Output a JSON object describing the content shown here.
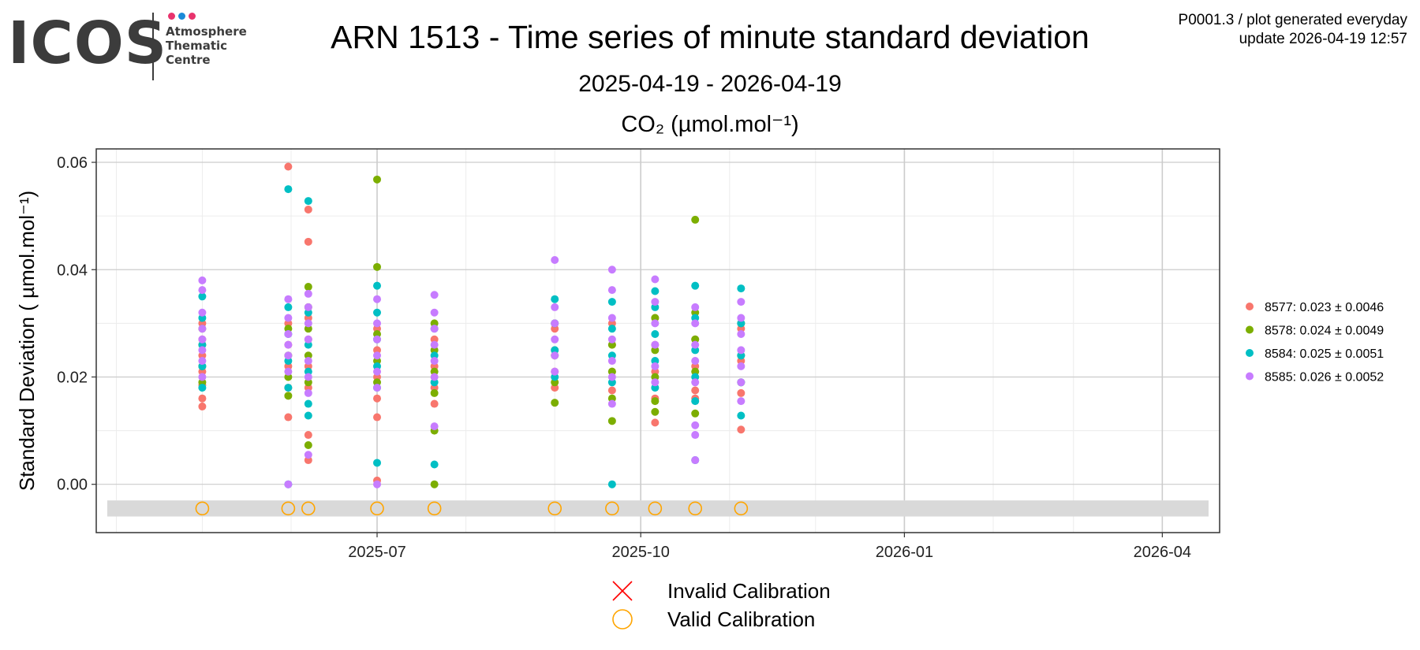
{
  "header": {
    "logo_text": "ICOS",
    "logo_lines": [
      "Atmosphere",
      "Thematic",
      "Centre"
    ],
    "logo_dot_colors": [
      "#e8336d",
      "#1a8ad8",
      "#e8336d"
    ],
    "plot_id": "P0001.3 / plot generated everyday",
    "update_line": "update  2026-04-19 12:57"
  },
  "chart_data": {
    "type": "scatter",
    "title": "ARN 1513 - Time series of minute standard deviation",
    "subtitle": "2025-04-19 - 2026-04-19",
    "panel_title": "CO₂ (µmol.mol⁻¹)",
    "ylabel": "Standard Deviation ( µmol.mol⁻¹)",
    "xlabel": "",
    "x_type": "date",
    "xlim": [
      "2025-04-19",
      "2026-04-19"
    ],
    "ylim": [
      -0.009,
      0.0625
    ],
    "x_ticks": [
      "2025-07",
      "2025-10",
      "2026-01",
      "2026-04"
    ],
    "y_ticks": [
      0.0,
      0.02,
      0.04,
      0.06
    ],
    "y_tick_labels": [
      "0.00",
      "0.02",
      "0.04",
      "0.06"
    ],
    "grid": true,
    "legend_position": "right",
    "calibration_band": [
      -0.006,
      -0.003
    ],
    "series": [
      {
        "name": "8577",
        "stat": "8577: 0.023 ± 0.0046",
        "color": "#F8766D",
        "points": [
          [
            "2025-05-01",
            0.0145
          ],
          [
            "2025-05-01",
            0.016
          ],
          [
            "2025-05-01",
            0.0185
          ],
          [
            "2025-05-01",
            0.021
          ],
          [
            "2025-05-01",
            0.024
          ],
          [
            "2025-05-01",
            0.027
          ],
          [
            "2025-05-01",
            0.03
          ],
          [
            "2025-05-31",
            0.0592
          ],
          [
            "2025-05-31",
            0.0125
          ],
          [
            "2025-05-31",
            0.018
          ],
          [
            "2025-05-31",
            0.022
          ],
          [
            "2025-05-31",
            0.026
          ],
          [
            "2025-05-31",
            0.03
          ],
          [
            "2025-06-07",
            0.0512
          ],
          [
            "2025-06-07",
            0.0452
          ],
          [
            "2025-06-07",
            0.0092
          ],
          [
            "2025-06-07",
            0.0045
          ],
          [
            "2025-06-07",
            0.018
          ],
          [
            "2025-06-07",
            0.022
          ],
          [
            "2025-06-07",
            0.027
          ],
          [
            "2025-06-07",
            0.031
          ],
          [
            "2025-07-01",
            0.0125
          ],
          [
            "2025-07-01",
            0.016
          ],
          [
            "2025-07-01",
            0.0007
          ],
          [
            "2025-07-01",
            0.02
          ],
          [
            "2025-07-01",
            0.025
          ],
          [
            "2025-07-01",
            0.029
          ],
          [
            "2025-07-21",
            0.015
          ],
          [
            "2025-07-21",
            0.018
          ],
          [
            "2025-07-21",
            0.022
          ],
          [
            "2025-07-21",
            0.027
          ],
          [
            "2025-09-01",
            0.018
          ],
          [
            "2025-09-01",
            0.021
          ],
          [
            "2025-09-01",
            0.025
          ],
          [
            "2025-09-01",
            0.029
          ],
          [
            "2025-09-21",
            0.0175
          ],
          [
            "2025-09-21",
            0.021
          ],
          [
            "2025-09-21",
            0.026
          ],
          [
            "2025-09-21",
            0.03
          ],
          [
            "2025-10-06",
            0.0115
          ],
          [
            "2025-10-06",
            0.016
          ],
          [
            "2025-10-06",
            0.021
          ],
          [
            "2025-10-06",
            0.026
          ],
          [
            "2025-10-06",
            0.031
          ],
          [
            "2025-10-20",
            0.016
          ],
          [
            "2025-10-20",
            0.0175
          ],
          [
            "2025-10-20",
            0.022
          ],
          [
            "2025-10-20",
            0.027
          ],
          [
            "2025-11-05",
            0.0102
          ],
          [
            "2025-11-05",
            0.017
          ],
          [
            "2025-11-05",
            0.023
          ],
          [
            "2025-11-05",
            0.029
          ]
        ]
      },
      {
        "name": "8578",
        "stat": "8578: 0.024 ± 0.0049",
        "color": "#7CAE00",
        "points": [
          [
            "2025-05-01",
            0.019
          ],
          [
            "2025-05-01",
            0.022
          ],
          [
            "2025-05-01",
            0.026
          ],
          [
            "2025-05-01",
            0.029
          ],
          [
            "2025-05-31",
            0.0165
          ],
          [
            "2025-05-31",
            0.02
          ],
          [
            "2025-05-31",
            0.024
          ],
          [
            "2025-05-31",
            0.029
          ],
          [
            "2025-06-07",
            0.0368
          ],
          [
            "2025-06-07",
            0.0073
          ],
          [
            "2025-06-07",
            0.019
          ],
          [
            "2025-06-07",
            0.024
          ],
          [
            "2025-06-07",
            0.029
          ],
          [
            "2025-06-07",
            0.033
          ],
          [
            "2025-07-01",
            0.0568
          ],
          [
            "2025-07-01",
            0.0405
          ],
          [
            "2025-07-01",
            0.019
          ],
          [
            "2025-07-01",
            0.023
          ],
          [
            "2025-07-01",
            0.028
          ],
          [
            "2025-07-21",
            0.0
          ],
          [
            "2025-07-21",
            0.01
          ],
          [
            "2025-07-21",
            0.017
          ],
          [
            "2025-07-21",
            0.021
          ],
          [
            "2025-07-21",
            0.025
          ],
          [
            "2025-07-21",
            0.03
          ],
          [
            "2025-09-01",
            0.0152
          ],
          [
            "2025-09-01",
            0.019
          ],
          [
            "2025-09-01",
            0.024
          ],
          [
            "2025-09-01",
            0.03
          ],
          [
            "2025-09-21",
            0.0118
          ],
          [
            "2025-09-21",
            0.016
          ],
          [
            "2025-09-21",
            0.021
          ],
          [
            "2025-09-21",
            0.026
          ],
          [
            "2025-10-06",
            0.0135
          ],
          [
            "2025-10-06",
            0.0155
          ],
          [
            "2025-10-06",
            0.02
          ],
          [
            "2025-10-06",
            0.025
          ],
          [
            "2025-10-06",
            0.031
          ],
          [
            "2025-10-20",
            0.0493
          ],
          [
            "2025-10-20",
            0.0132
          ],
          [
            "2025-10-20",
            0.021
          ],
          [
            "2025-10-20",
            0.027
          ],
          [
            "2025-10-20",
            0.032
          ],
          [
            "2025-11-05",
            0.019
          ],
          [
            "2025-11-05",
            0.024
          ],
          [
            "2025-11-05",
            0.03
          ]
        ]
      },
      {
        "name": "8584",
        "stat": "8584: 0.025 ± 0.0051",
        "color": "#00BFC4",
        "points": [
          [
            "2025-05-01",
            0.018
          ],
          [
            "2025-05-01",
            0.022
          ],
          [
            "2025-05-01",
            0.026
          ],
          [
            "2025-05-01",
            0.031
          ],
          [
            "2025-05-01",
            0.035
          ],
          [
            "2025-05-31",
            0.055
          ],
          [
            "2025-05-31",
            0.0
          ],
          [
            "2025-05-31",
            0.018
          ],
          [
            "2025-05-31",
            0.023
          ],
          [
            "2025-05-31",
            0.028
          ],
          [
            "2025-05-31",
            0.033
          ],
          [
            "2025-06-07",
            0.0528
          ],
          [
            "2025-06-07",
            0.0128
          ],
          [
            "2025-06-07",
            0.015
          ],
          [
            "2025-06-07",
            0.021
          ],
          [
            "2025-06-07",
            0.026
          ],
          [
            "2025-06-07",
            0.032
          ],
          [
            "2025-07-01",
            0.004
          ],
          [
            "2025-07-01",
            0.037
          ],
          [
            "2025-07-01",
            0.018
          ],
          [
            "2025-07-01",
            0.022
          ],
          [
            "2025-07-01",
            0.027
          ],
          [
            "2025-07-01",
            0.032
          ],
          [
            "2025-07-21",
            0.0037
          ],
          [
            "2025-07-21",
            0.019
          ],
          [
            "2025-07-21",
            0.024
          ],
          [
            "2025-07-21",
            0.029
          ],
          [
            "2025-09-01",
            0.0345
          ],
          [
            "2025-09-01",
            0.02
          ],
          [
            "2025-09-01",
            0.025
          ],
          [
            "2025-09-01",
            0.03
          ],
          [
            "2025-09-21",
            0.0
          ],
          [
            "2025-09-21",
            0.019
          ],
          [
            "2025-09-21",
            0.024
          ],
          [
            "2025-09-21",
            0.029
          ],
          [
            "2025-09-21",
            0.034
          ],
          [
            "2025-10-06",
            0.036
          ],
          [
            "2025-10-06",
            0.018
          ],
          [
            "2025-10-06",
            0.023
          ],
          [
            "2025-10-06",
            0.028
          ],
          [
            "2025-10-06",
            0.033
          ],
          [
            "2025-10-20",
            0.0045
          ],
          [
            "2025-10-20",
            0.037
          ],
          [
            "2025-10-20",
            0.0155
          ],
          [
            "2025-10-20",
            0.02
          ],
          [
            "2025-10-20",
            0.025
          ],
          [
            "2025-10-20",
            0.031
          ],
          [
            "2025-11-05",
            0.0128
          ],
          [
            "2025-11-05",
            0.0365
          ],
          [
            "2025-11-05",
            0.019
          ],
          [
            "2025-11-05",
            0.024
          ],
          [
            "2025-11-05",
            0.03
          ]
        ]
      },
      {
        "name": "8585",
        "stat": "8585: 0.026 ± 0.0052",
        "color": "#C77CFF",
        "points": [
          [
            "2025-05-01",
            0.038
          ],
          [
            "2025-05-01",
            0.0362
          ],
          [
            "2025-05-01",
            0.02
          ],
          [
            "2025-05-01",
            0.023
          ],
          [
            "2025-05-01",
            0.025
          ],
          [
            "2025-05-01",
            0.027
          ],
          [
            "2025-05-01",
            0.029
          ],
          [
            "2025-05-01",
            0.032
          ],
          [
            "2025-05-31",
            0.0
          ],
          [
            "2025-05-31",
            0.0345
          ],
          [
            "2025-05-31",
            0.021
          ],
          [
            "2025-05-31",
            0.024
          ],
          [
            "2025-05-31",
            0.026
          ],
          [
            "2025-05-31",
            0.028
          ],
          [
            "2025-05-31",
            0.031
          ],
          [
            "2025-06-07",
            0.0055
          ],
          [
            "2025-06-07",
            0.0355
          ],
          [
            "2025-06-07",
            0.017
          ],
          [
            "2025-06-07",
            0.02
          ],
          [
            "2025-06-07",
            0.023
          ],
          [
            "2025-06-07",
            0.027
          ],
          [
            "2025-06-07",
            0.03
          ],
          [
            "2025-06-07",
            0.033
          ],
          [
            "2025-07-01",
            0.0
          ],
          [
            "2025-07-01",
            0.0345
          ],
          [
            "2025-07-01",
            0.018
          ],
          [
            "2025-07-01",
            0.021
          ],
          [
            "2025-07-01",
            0.024
          ],
          [
            "2025-07-01",
            0.027
          ],
          [
            "2025-07-01",
            0.03
          ],
          [
            "2025-07-21",
            0.0108
          ],
          [
            "2025-07-21",
            0.0353
          ],
          [
            "2025-07-21",
            0.02
          ],
          [
            "2025-07-21",
            0.023
          ],
          [
            "2025-07-21",
            0.026
          ],
          [
            "2025-07-21",
            0.029
          ],
          [
            "2025-07-21",
            0.032
          ],
          [
            "2025-09-01",
            0.0418
          ],
          [
            "2025-09-01",
            0.021
          ],
          [
            "2025-09-01",
            0.024
          ],
          [
            "2025-09-01",
            0.027
          ],
          [
            "2025-09-01",
            0.03
          ],
          [
            "2025-09-01",
            0.033
          ],
          [
            "2025-09-21",
            0.04
          ],
          [
            "2025-09-21",
            0.0362
          ],
          [
            "2025-09-21",
            0.015
          ],
          [
            "2025-09-21",
            0.02
          ],
          [
            "2025-09-21",
            0.023
          ],
          [
            "2025-09-21",
            0.027
          ],
          [
            "2025-09-21",
            0.031
          ],
          [
            "2025-10-06",
            0.0382
          ],
          [
            "2025-10-06",
            0.019
          ],
          [
            "2025-10-06",
            0.022
          ],
          [
            "2025-10-06",
            0.026
          ],
          [
            "2025-10-06",
            0.03
          ],
          [
            "2025-10-06",
            0.034
          ],
          [
            "2025-10-20",
            0.0045
          ],
          [
            "2025-10-20",
            0.011
          ],
          [
            "2025-10-20",
            0.0092
          ],
          [
            "2025-10-20",
            0.019
          ],
          [
            "2025-10-20",
            0.023
          ],
          [
            "2025-10-20",
            0.026
          ],
          [
            "2025-10-20",
            0.03
          ],
          [
            "2025-10-20",
            0.033
          ],
          [
            "2025-11-05",
            0.0155
          ],
          [
            "2025-11-05",
            0.019
          ],
          [
            "2025-11-05",
            0.022
          ],
          [
            "2025-11-05",
            0.025
          ],
          [
            "2025-11-05",
            0.028
          ],
          [
            "2025-11-05",
            0.031
          ],
          [
            "2025-11-05",
            0.034
          ]
        ]
      }
    ],
    "valid_calibrations": [
      "2025-05-01",
      "2025-05-31",
      "2025-06-07",
      "2025-07-01",
      "2025-07-21",
      "2025-09-01",
      "2025-09-21",
      "2025-10-06",
      "2025-10-20",
      "2025-11-05"
    ],
    "invalid_calibrations": [],
    "calibration_y": -0.0045,
    "calibration_legend": [
      {
        "label": "Invalid Calibration",
        "symbol": "cross",
        "color": "#ff0000"
      },
      {
        "label": "Valid Calibration",
        "symbol": "circle",
        "color": "#ffa500"
      }
    ],
    "colors": {
      "panel_border": "#333333",
      "grid_major": "#cccccc",
      "grid_minor": "#ececec",
      "band": "#d9d9d9"
    }
  }
}
